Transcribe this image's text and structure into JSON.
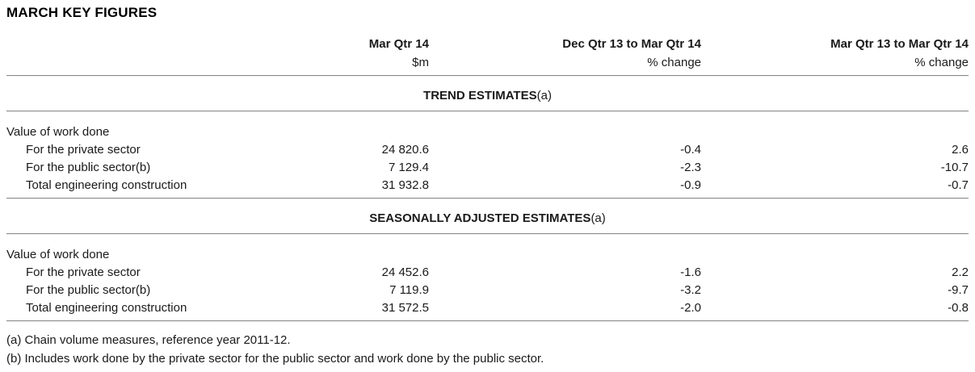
{
  "title": "MARCH KEY FIGURES",
  "table": {
    "columns": [
      {
        "period": "Mar Qtr 14",
        "unit": "$m"
      },
      {
        "period": "Dec Qtr 13 to Mar Qtr 14",
        "unit": "% change"
      },
      {
        "period": "Mar Qtr 13 to Mar Qtr 14",
        "unit": "% change"
      }
    ],
    "sections": [
      {
        "heading": "TREND ESTIMATES",
        "heading_note": "(a)",
        "group_label": "Value of work done",
        "rows": [
          {
            "label": "For the private sector",
            "values": [
              "24 820.6",
              "-0.4",
              "2.6"
            ]
          },
          {
            "label": "For the public sector(b)",
            "values": [
              "7 129.4",
              "-2.3",
              "-10.7"
            ]
          },
          {
            "label": "Total engineering construction",
            "values": [
              "31 932.8",
              "-0.9",
              "-0.7"
            ]
          }
        ]
      },
      {
        "heading": "SEASONALLY ADJUSTED ESTIMATES",
        "heading_note": "(a)",
        "group_label": "Value of work done",
        "rows": [
          {
            "label": "For the private sector",
            "values": [
              "24 452.6",
              "-1.6",
              "2.2"
            ]
          },
          {
            "label": "For the public sector(b)",
            "values": [
              "7 119.9",
              "-3.2",
              "-9.7"
            ]
          },
          {
            "label": "Total engineering construction",
            "values": [
              "31 572.5",
              "-2.0",
              "-0.8"
            ]
          }
        ]
      }
    ]
  },
  "footnotes": [
    "(a) Chain volume measures, reference year 2011-12.",
    "(b) Includes work done by the private sector for the public sector and work done by the public sector."
  ]
}
